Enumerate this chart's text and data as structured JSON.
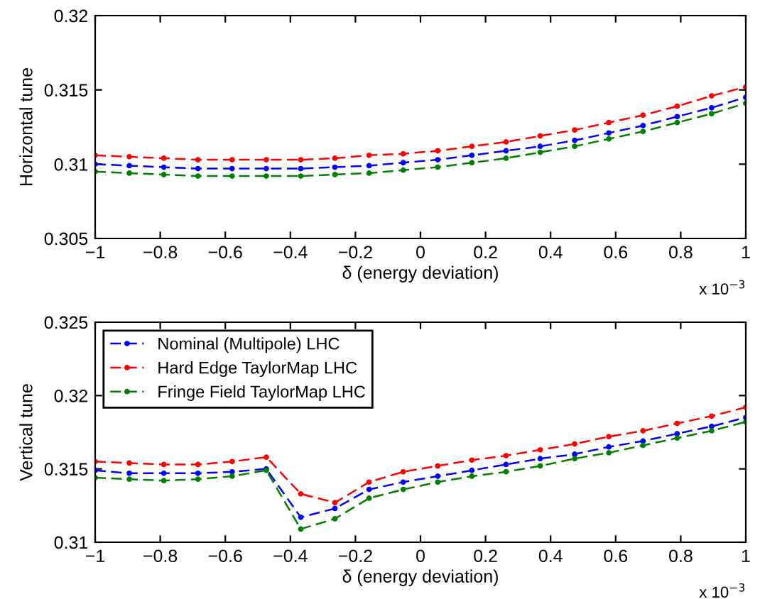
{
  "chart_data": [
    {
      "type": "line",
      "xlabel": "δ (energy deviation)",
      "ylabel": "Horizontal tune",
      "marker": "circle",
      "line_style": "dashed",
      "grid": false,
      "legend": false,
      "x": [
        -1,
        -0.895,
        -0.789,
        -0.684,
        -0.579,
        -0.474,
        -0.368,
        -0.263,
        -0.158,
        -0.053,
        0.053,
        0.158,
        0.263,
        0.368,
        0.474,
        0.579,
        0.684,
        0.789,
        0.895,
        1
      ],
      "xlim": [
        -1,
        1
      ],
      "xticks": [
        -1,
        -0.8,
        -0.6,
        -0.4,
        -0.2,
        0,
        0.2,
        0.4,
        0.6,
        0.8,
        1
      ],
      "ylim": [
        0.305,
        0.32
      ],
      "yticks": [
        0.305,
        0.31,
        0.315,
        0.32
      ],
      "annotations": [
        "x 10$^{−3}$"
      ],
      "series": [
        {
          "color": "#0000ff",
          "values": [
            0.31,
            0.3099,
            0.3098,
            0.3097,
            0.3097,
            0.3097,
            0.3097,
            0.3098,
            0.3099,
            0.3101,
            0.3103,
            0.3106,
            0.3109,
            0.3112,
            0.3116,
            0.3121,
            0.3126,
            0.3132,
            0.3138,
            0.3145
          ]
        },
        {
          "color": "#ff0000",
          "values": [
            0.3106,
            0.3105,
            0.3104,
            0.3103,
            0.3103,
            0.3103,
            0.3103,
            0.3104,
            0.3106,
            0.3107,
            0.3109,
            0.3112,
            0.3115,
            0.3119,
            0.3123,
            0.3128,
            0.3133,
            0.3139,
            0.3146,
            0.3152
          ]
        },
        {
          "color": "#008000",
          "values": [
            0.3095,
            0.3094,
            0.3093,
            0.3092,
            0.3092,
            0.3092,
            0.3092,
            0.3093,
            0.3094,
            0.3096,
            0.3098,
            0.3101,
            0.3104,
            0.3108,
            0.3112,
            0.3117,
            0.3122,
            0.3128,
            0.3134,
            0.3141
          ]
        }
      ]
    },
    {
      "type": "line",
      "xlabel": "δ (energy deviation)",
      "ylabel": "Vertical tune",
      "marker": "circle",
      "line_style": "dashed",
      "grid": false,
      "legend": "top left",
      "x": [
        -1,
        -0.895,
        -0.789,
        -0.684,
        -0.579,
        -0.474,
        -0.368,
        -0.263,
        -0.158,
        -0.053,
        0.053,
        0.158,
        0.263,
        0.368,
        0.474,
        0.579,
        0.684,
        0.789,
        0.895,
        1
      ],
      "xlim": [
        -1,
        1
      ],
      "xticks": [
        -1,
        -0.8,
        -0.6,
        -0.4,
        -0.2,
        0,
        0.2,
        0.4,
        0.6,
        0.8,
        1
      ],
      "ylim": [
        0.31,
        0.325
      ],
      "yticks": [
        0.31,
        0.315,
        0.32,
        0.325
      ],
      "annotations": [
        "x 10$^{−3}$"
      ],
      "series": [
        {
          "name": "Nominal (Multipole) LHC",
          "color": "#0000ff",
          "values": [
            0.3149,
            0.3147,
            0.3147,
            0.3147,
            0.3148,
            0.315,
            0.3117,
            0.3123,
            0.3136,
            0.3141,
            0.3145,
            0.3149,
            0.3153,
            0.3157,
            0.316,
            0.3165,
            0.3169,
            0.3174,
            0.3179,
            0.3185
          ]
        },
        {
          "name": "Hard Edge TaylorMap LHC",
          "color": "#ff0000",
          "values": [
            0.3155,
            0.3154,
            0.3153,
            0.3153,
            0.3155,
            0.3158,
            0.3133,
            0.3127,
            0.3141,
            0.3148,
            0.3152,
            0.3156,
            0.3159,
            0.3163,
            0.3167,
            0.3172,
            0.3176,
            0.3181,
            0.3186,
            0.3192
          ]
        },
        {
          "name": "Fringe Field TaylorMap LHC",
          "color": "#008000",
          "values": [
            0.3144,
            0.3143,
            0.3142,
            0.3143,
            0.3145,
            0.3149,
            0.3109,
            0.3116,
            0.313,
            0.3136,
            0.3141,
            0.3145,
            0.3148,
            0.3152,
            0.3157,
            0.3161,
            0.3166,
            0.3171,
            0.3176,
            0.3182
          ]
        }
      ]
    }
  ]
}
